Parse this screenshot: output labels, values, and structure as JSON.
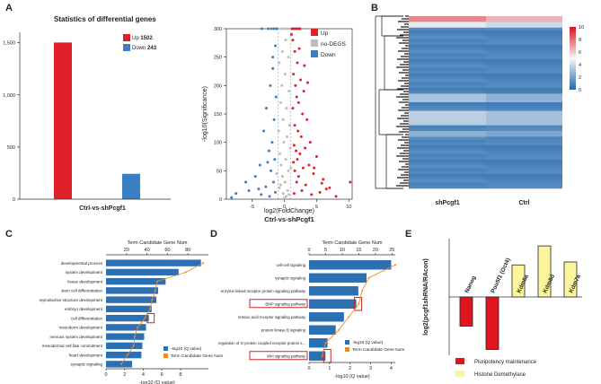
{
  "panel_labels": [
    "A",
    "B",
    "C",
    "D",
    "E"
  ],
  "chart_data": [
    {
      "id": "A1",
      "type": "bar",
      "title": "Statistics of differential genes",
      "xlabel": "Ctrl-vs-shPcgf1",
      "ylabel": "",
      "ylim": [
        0,
        1600
      ],
      "yticks": [
        0,
        500,
        1000,
        1500
      ],
      "ytick_labels": [
        "0",
        "500",
        "1,000",
        "1,500"
      ],
      "categories": [
        "Up",
        "Down"
      ],
      "values": [
        1502,
        243
      ],
      "colors": [
        "#e0212a",
        "#3a7fc1"
      ],
      "legend": [
        {
          "label": "Up",
          "value": "1502",
          "color": "#e0212a"
        },
        {
          "label": "Down",
          "value": "243",
          "color": "#3a7fc1"
        }
      ],
      "grid": false
    },
    {
      "id": "A2",
      "type": "scatter",
      "title": "",
      "xlabel": "log2(FoldChange)",
      "subtitle": "Ctrl-vs-shPcgf1",
      "ylabel": "-log10(Significance)",
      "xlim": [
        -9,
        10.5
      ],
      "ylim": [
        0,
        300
      ],
      "xticks": [
        -5,
        0,
        5,
        10
      ],
      "yticks": [
        0,
        50,
        100,
        150,
        200,
        250,
        300
      ],
      "legend": [
        {
          "label": "Up",
          "color": "#e0212a"
        },
        {
          "label": "no-DEGS",
          "color": "#bdbdbd"
        },
        {
          "label": "Down",
          "color": "#3a7fc1"
        }
      ],
      "series": [
        {
          "name": "Up",
          "color": "#e0212a",
          "points": [
            [
              1.2,
              300
            ],
            [
              1.5,
              300
            ],
            [
              1.8,
              300
            ],
            [
              2.1,
              300
            ],
            [
              2.4,
              300
            ],
            [
              1.3,
              280
            ],
            [
              1.6,
              260
            ],
            [
              2.0,
              240
            ],
            [
              1.4,
              220
            ],
            [
              2.5,
              210
            ],
            [
              1.7,
              200
            ],
            [
              3.0,
              190
            ],
            [
              1.9,
              180
            ],
            [
              2.2,
              170
            ],
            [
              1.3,
              160
            ],
            [
              2.8,
              150
            ],
            [
              3.5,
              140
            ],
            [
              1.6,
              130
            ],
            [
              2.1,
              120
            ],
            [
              2.6,
              110
            ],
            [
              4.0,
              100
            ],
            [
              1.5,
              95
            ],
            [
              3.2,
              90
            ],
            [
              1.8,
              85
            ],
            [
              2.4,
              80
            ],
            [
              5.0,
              75
            ],
            [
              2.0,
              70
            ],
            [
              1.4,
              65
            ],
            [
              3.8,
              60
            ],
            [
              2.9,
              55
            ],
            [
              1.6,
              50
            ],
            [
              4.5,
              45
            ],
            [
              2.2,
              40
            ],
            [
              6.0,
              35
            ],
            [
              1.9,
              30
            ],
            [
              3.3,
              25
            ],
            [
              7.0,
              20
            ],
            [
              2.7,
              15
            ],
            [
              5.5,
              12
            ],
            [
              1.5,
              10
            ],
            [
              4.2,
              8
            ],
            [
              8.0,
              5
            ],
            [
              10.2,
              30
            ],
            [
              6.5,
              18
            ],
            [
              3.1,
              235
            ],
            [
              2.3,
              265
            ],
            [
              1.1,
              290
            ],
            [
              3.6,
              205
            ],
            [
              4.6,
              55
            ],
            [
              5.8,
              28
            ]
          ]
        },
        {
          "name": "no-DEGS",
          "color": "#bdbdbd",
          "points": [
            [
              -0.5,
              300
            ],
            [
              0,
              300
            ],
            [
              0.5,
              300
            ],
            [
              -1,
              300
            ],
            [
              0.2,
              280
            ],
            [
              -0.3,
              260
            ],
            [
              0.6,
              250
            ],
            [
              -0.8,
              240
            ],
            [
              0.1,
              220
            ],
            [
              -0.4,
              200
            ],
            [
              0.7,
              190
            ],
            [
              -0.6,
              170
            ],
            [
              0.3,
              160
            ],
            [
              -0.2,
              140
            ],
            [
              0.8,
              130
            ],
            [
              -0.9,
              120
            ],
            [
              0.4,
              110
            ],
            [
              -0.1,
              100
            ],
            [
              0.9,
              90
            ],
            [
              -0.7,
              80
            ],
            [
              0.2,
              70
            ],
            [
              -0.5,
              60
            ],
            [
              0.6,
              50
            ],
            [
              -0.3,
              40
            ],
            [
              0.1,
              30
            ],
            [
              -0.8,
              20
            ],
            [
              0.5,
              15
            ],
            [
              -0.2,
              10
            ],
            [
              0.3,
              5
            ],
            [
              0,
              2
            ],
            [
              -1.2,
              45
            ],
            [
              1.0,
              55
            ],
            [
              -0.6,
              25
            ],
            [
              0.7,
              8
            ]
          ]
        },
        {
          "name": "Down",
          "color": "#3a7fc1",
          "points": [
            [
              -1.2,
              300
            ],
            [
              -1.6,
              300
            ],
            [
              -2.0,
              300
            ],
            [
              -2.5,
              300
            ],
            [
              -3.5,
              300
            ],
            [
              -1.4,
              270
            ],
            [
              -1.8,
              230
            ],
            [
              -2.2,
              200
            ],
            [
              -1.3,
              180
            ],
            [
              -2.8,
              160
            ],
            [
              -1.6,
              140
            ],
            [
              -3.2,
              120
            ],
            [
              -1.9,
              100
            ],
            [
              -2.4,
              85
            ],
            [
              -1.5,
              70
            ],
            [
              -3.8,
              60
            ],
            [
              -2.1,
              50
            ],
            [
              -4.5,
              40
            ],
            [
              -1.7,
              30
            ],
            [
              -2.9,
              22
            ],
            [
              -5.5,
              15
            ],
            [
              -1.4,
              12
            ],
            [
              -3.6,
              8
            ],
            [
              -2.3,
              5
            ],
            [
              -7.5,
              10
            ],
            [
              -6.0,
              30
            ],
            [
              -4.0,
              18
            ],
            [
              -8.2,
              3
            ],
            [
              -1.8,
              250
            ],
            [
              -2.6,
              65
            ]
          ]
        }
      ],
      "grid": false
    },
    {
      "id": "B",
      "type": "heatmap",
      "title": "",
      "columns": [
        "shPcgf1",
        "Ctrl"
      ],
      "colorbar": {
        "min": 0,
        "max": 10,
        "ticks": [
          0,
          2,
          4,
          6,
          8,
          10
        ],
        "colors": [
          "#2166ac",
          "#f7f7f7",
          "#d6151e"
        ]
      }
    },
    {
      "id": "C",
      "type": "bar",
      "title": "Term Candidate Gene Num",
      "xlabel": "-log10  (Q value)",
      "orientation": "horizontal",
      "categories": [
        "developmental process",
        "system development",
        "tissue development",
        "stem cell differentiation",
        "reproductive structure development",
        "embryo development",
        "cell differentiation",
        "mesoderm development",
        "nervous system development",
        "mesodermal cell fate commitment",
        "heart development",
        "synaptic signaling"
      ],
      "series": [
        {
          "name": "-log10  (Q value)",
          "color": "#2c6fb3",
          "values": [
            10.2,
            7.8,
            6.4,
            5.6,
            5.4,
            4.9,
            4.6,
            4.3,
            4.1,
            3.9,
            3.8,
            2.8
          ]
        },
        {
          "name": "Term Candidate Gene Num",
          "color": "#f28a1f",
          "values": [
            95,
            78,
            50,
            48,
            45,
            43,
            38,
            31,
            28,
            27,
            21,
            15
          ]
        }
      ],
      "xlim_bottom": [
        0,
        11
      ],
      "xticks_bottom": [
        0,
        2,
        4,
        6,
        8
      ],
      "xlim_top": [
        0,
        100
      ],
      "xticks_top": [
        20,
        40,
        60,
        80
      ],
      "highlight": [
        6
      ]
    },
    {
      "id": "D",
      "type": "bar",
      "title": "Term Candidate Gene Num",
      "xlabel": "-log10  (Q value)",
      "orientation": "horizontal",
      "categories": [
        "cell-cell signaling",
        "synaptic signaling",
        "enzyme linked receptor protein signaling pathway",
        "BMP signaling pathway",
        "retinoic acid receptor signaling pathway",
        "protein kinase B signaling",
        "regulation of G-protein coupled receptor protein s...",
        "Wnt signaling pathway"
      ],
      "series": [
        {
          "name": "-log10  (Q value)",
          "color": "#2c6fb3",
          "values": [
            4.0,
            2.8,
            2.4,
            2.3,
            1.7,
            1.3,
            0.9,
            0.8
          ]
        },
        {
          "name": "Term Candidate Gene Num",
          "color": "#f28a1f",
          "values": [
            26,
            18,
            16,
            15,
            12,
            9,
            5,
            4
          ]
        }
      ],
      "xlim_bottom": [
        0,
        4.2
      ],
      "xticks_bottom": [
        0,
        1,
        2,
        3,
        4
      ],
      "xlim_top": [
        0,
        26
      ],
      "xticks_top": [
        0,
        5,
        10,
        15,
        20,
        25
      ],
      "highlight": [
        3,
        7
      ]
    },
    {
      "id": "E",
      "type": "bar",
      "title": "",
      "ylabel": "log2(pcgf1shRNA/RAcon)",
      "ylim": [
        -2,
        2
      ],
      "categories": [
        "Nanog",
        "Pou5f1 (Oct4)",
        "Kdm5a",
        "Kdm5d",
        "Kdm7a"
      ],
      "values": [
        -1.0,
        -1.8,
        1.1,
        1.75,
        1.2
      ],
      "colors": [
        "#e0141c",
        "#e0141c",
        "#fdf59c",
        "#fdf59c",
        "#fdf59c"
      ],
      "legend": [
        {
          "label": "Pluripotency maintenance",
          "color": "#e0141c"
        },
        {
          "label": "Histone Demethylase",
          "color": "#fdf59c"
        }
      ]
    }
  ]
}
